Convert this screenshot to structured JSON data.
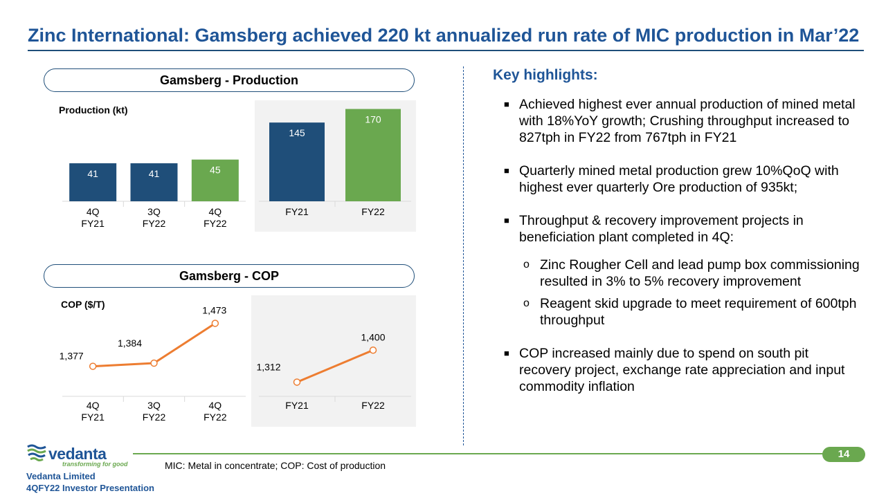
{
  "title": "Zinc International: Gamsberg achieved 220 kt annualized run rate of MIC production in Mar’22",
  "production_section": {
    "header": "Gamsberg - Production",
    "axis_label": "Production (kt)"
  },
  "cop_section": {
    "header": "Gamsberg - COP",
    "axis_label": "COP ($/T)"
  },
  "colors": {
    "title_blue": "#1f5597",
    "bar_blue": "#1f4e79",
    "bar_green": "#6aa84f",
    "line_orange": "#ed7d31"
  },
  "chart_data": [
    {
      "id": "prod-quarterly",
      "type": "bar",
      "title": "Gamsberg - Production",
      "ylabel": "Production (kt)",
      "categories": [
        "4Q FY21",
        "3Q FY22",
        "4Q FY22"
      ],
      "values": [
        41,
        41,
        45
      ],
      "labels": [
        "41",
        "41",
        "45"
      ],
      "colors": [
        "#1f4e79",
        "#1f4e79",
        "#6aa84f"
      ],
      "ylim": [
        0,
        100
      ]
    },
    {
      "id": "prod-annual",
      "type": "bar",
      "title": "Gamsberg - Production",
      "ylabel": "Production (kt)",
      "categories": [
        "FY21",
        "FY22"
      ],
      "values": [
        145,
        170
      ],
      "labels": [
        "145",
        "170"
      ],
      "colors": [
        "#1f4e79",
        "#6aa84f"
      ],
      "ylim": [
        0,
        200
      ]
    },
    {
      "id": "cop-quarterly",
      "type": "line",
      "title": "Gamsberg - COP",
      "ylabel": "COP ($/T)",
      "categories": [
        "4Q FY21",
        "3Q FY22",
        "4Q FY22"
      ],
      "values": [
        1377,
        1384,
        1473
      ],
      "labels": [
        "1,377",
        "1,384",
        "1,473"
      ],
      "ylim": [
        1330,
        1500
      ]
    },
    {
      "id": "cop-annual",
      "type": "line",
      "title": "Gamsberg - COP",
      "ylabel": "COP ($/T)",
      "categories": [
        "FY21",
        "FY22"
      ],
      "values": [
        1312,
        1400
      ],
      "labels": [
        "1,312",
        "1,400"
      ],
      "ylim": [
        1250,
        1450
      ]
    }
  ],
  "highlights": {
    "title": "Key highlights:",
    "b1": "Achieved highest ever annual production of mined metal with 18%YoY growth; Crushing throughput increased to 827tph in FY22 from 767tph in FY21",
    "b2": "Quarterly mined metal production grew 10%QoQ with highest ever quarterly Ore production of  935kt;",
    "b3": "Throughput & recovery improvement projects in beneficiation plant completed in 4Q:",
    "s1": "Zinc Rougher Cell and lead pump box commissioning resulted in 3% to 5% recovery improvement",
    "s2": "Reagent skid upgrade to meet requirement of 600tph throughput",
    "b4": "COP increased mainly due to spend on south pit recovery project, exchange rate appreciation and input commodity inflation"
  },
  "footer": {
    "note": "MIC: Metal in concentrate; COP: Cost of production",
    "page": "14",
    "brand": "vedanta",
    "tagline": "transforming for good",
    "company": "Vedanta Limited",
    "presentation": "4QFY22 Investor Presentation"
  }
}
